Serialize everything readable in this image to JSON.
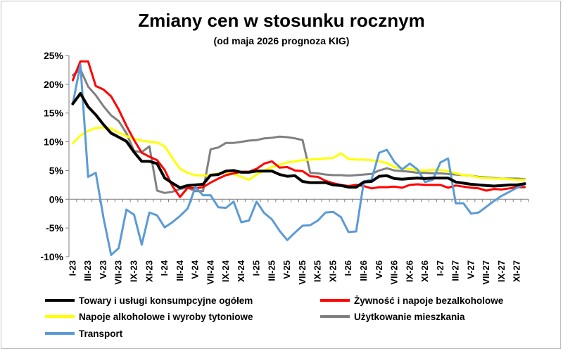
{
  "chart_data": {
    "type": "line",
    "title": "Zmiany cen w stosunku rocznym",
    "subtitle": "(od maja 2026 prognoza KIG)",
    "ylim": [
      -10,
      25
    ],
    "yticks": [
      "-10%",
      "-5%",
      "0%",
      "5%",
      "10%",
      "15%",
      "20%",
      "25%"
    ],
    "grid": false,
    "legend_position": "bottom",
    "x": [
      "I-23",
      "II-23",
      "III-23",
      "IV-23",
      "V-23",
      "VI-23",
      "VII-23",
      "VIII-23",
      "IX-23",
      "X-23",
      "XI-23",
      "XII-23",
      "I-24",
      "II-24",
      "III-24",
      "IV-24",
      "V-24",
      "VI-24",
      "VII-24",
      "VIII-24",
      "IX-24",
      "X-24",
      "XI-24",
      "XII-24",
      "I-25",
      "II-25",
      "III-25",
      "IV-25",
      "V-25",
      "VI-25",
      "VII-25",
      "VIII-25",
      "IX-25",
      "X-25",
      "XI-25",
      "XII-25",
      "I-26",
      "II-26",
      "III-26",
      "IV-26",
      "V-26",
      "VI-26",
      "VII-26",
      "VIII-26",
      "IX-26",
      "X-26",
      "XI-26",
      "XII-26",
      "I-27",
      "II-27",
      "III-27",
      "IV-27",
      "V-27",
      "VI-27",
      "VII-27",
      "VIII-27",
      "IX-27",
      "X-27",
      "XI-27",
      "XII-27"
    ],
    "x_tick_labels": [
      "I-23",
      "III-23",
      "V-23",
      "VII-23",
      "IX-23",
      "XI-23",
      "I-24",
      "III-24",
      "V-24",
      "VII-24",
      "IX-24",
      "XI-24",
      "I-25",
      "III-25",
      "V-25",
      "VII-25",
      "IX-25",
      "XI-25",
      "I-26",
      "III-26",
      "V-26",
      "VII-26",
      "IX-26",
      "XI-26",
      "I-27",
      "III-27",
      "V-27",
      "VII-27",
      "IX-27",
      "XI-27"
    ],
    "series": [
      {
        "name": "Towary i usługi konsumpcyjne ogółem",
        "color": "#000000",
        "width": 4,
        "values": [
          16.6,
          18.4,
          16.1,
          14.7,
          13.0,
          11.5,
          10.8,
          10.1,
          8.2,
          6.6,
          6.6,
          6.2,
          3.7,
          2.8,
          2.0,
          2.4,
          2.5,
          2.6,
          4.2,
          4.3,
          4.9,
          5.0,
          4.7,
          4.7,
          4.9,
          4.9,
          4.9,
          4.3,
          4.0,
          4.1,
          3.1,
          2.9,
          2.9,
          2.9,
          2.5,
          2.4,
          2.1,
          2.1,
          3.0,
          3.1,
          4.0,
          4.1,
          3.6,
          3.5,
          3.6,
          3.7,
          3.6,
          3.7,
          3.7,
          3.7,
          3.0,
          2.8,
          2.6,
          2.5,
          2.4,
          2.3,
          2.4,
          2.5,
          2.5,
          2.7
        ]
      },
      {
        "name": "Żywność i napoje bezalkoholowe",
        "color": "#ff0000",
        "width": 3,
        "values": [
          20.7,
          24.0,
          24.0,
          19.7,
          19.1,
          17.9,
          15.6,
          12.8,
          10.3,
          8.1,
          7.4,
          6.8,
          5.1,
          2.3,
          0.4,
          2.0,
          1.9,
          2.1,
          2.9,
          3.6,
          4.2,
          4.5,
          4.8,
          4.8,
          5.3,
          6.2,
          6.6,
          5.5,
          5.6,
          5.0,
          4.9,
          4.0,
          3.9,
          3.2,
          2.8,
          2.5,
          2.3,
          2.5,
          2.3,
          1.9,
          2.1,
          2.1,
          2.2,
          2.0,
          2.5,
          2.6,
          2.5,
          2.5,
          2.5,
          2.0,
          2.4,
          2.2,
          2.0,
          1.9,
          1.5,
          1.8,
          1.7,
          1.9,
          2.1,
          2.1
        ]
      },
      {
        "name": "Napoje alkoholowe i wyroby tytoniowe",
        "color": "#ffff00",
        "width": 3,
        "values": [
          9.7,
          11.1,
          11.9,
          12.4,
          12.5,
          12.3,
          11.6,
          11.0,
          10.5,
          10.2,
          10.0,
          9.9,
          9.2,
          7.2,
          5.3,
          4.6,
          4.2,
          4.1,
          4.2,
          4.5,
          4.7,
          4.4,
          3.9,
          3.4,
          4.3,
          5.0,
          5.6,
          6.0,
          6.4,
          6.6,
          6.8,
          6.9,
          7.0,
          7.1,
          7.2,
          8.0,
          7.0,
          6.9,
          6.9,
          6.8,
          6.6,
          6.3,
          5.6,
          5.4,
          5.3,
          5.0,
          5.0,
          5.1,
          5.1,
          4.9,
          4.5,
          4.2,
          4.1,
          3.8,
          3.7,
          3.6,
          3.6,
          3.5,
          3.4,
          3.4
        ]
      },
      {
        "name": "Użytkowanie mieszkania",
        "color": "#808080",
        "width": 3,
        "values": [
          21.6,
          22.6,
          19.6,
          18.1,
          16.2,
          14.6,
          13.6,
          11.5,
          8.4,
          8.2,
          9.2,
          1.5,
          1.1,
          1.3,
          1.8,
          2.0,
          1.4,
          1.4,
          8.7,
          9.0,
          9.8,
          9.8,
          10.0,
          10.2,
          10.3,
          10.6,
          10.7,
          10.9,
          10.8,
          10.6,
          10.3,
          4.6,
          4.5,
          4.3,
          4.2,
          4.2,
          4.1,
          4.2,
          4.3,
          4.4,
          5.0,
          5.4,
          5.0,
          4.9,
          4.8,
          4.6,
          4.6,
          4.5,
          4.5,
          4.4,
          4.3,
          4.2,
          4.1,
          3.9,
          3.8,
          3.7,
          3.6,
          3.6,
          3.6,
          3.5
        ]
      },
      {
        "name": "Transport",
        "color": "#5b9bd5",
        "width": 3,
        "values": [
          16.6,
          23.4,
          3.9,
          4.6,
          -3.2,
          -9.7,
          -8.5,
          -1.8,
          -2.7,
          -7.9,
          -2.3,
          -2.8,
          -4.9,
          -4.0,
          -2.9,
          -1.6,
          2.1,
          0.7,
          0.7,
          -1.4,
          -1.5,
          -0.4,
          -4.0,
          -3.7,
          -0.4,
          -2.4,
          -3.5,
          -5.5,
          -7.1,
          -5.8,
          -4.6,
          -4.5,
          -3.7,
          -2.3,
          -2.2,
          -3.1,
          -5.7,
          -5.6,
          3.1,
          3.4,
          8.1,
          8.6,
          6.5,
          5.2,
          6.2,
          5.2,
          3.0,
          3.4,
          6.4,
          7.1,
          -0.7,
          -0.7,
          -2.5,
          -2.3,
          -1.3,
          -0.3,
          0.6,
          1.3,
          2.0,
          2.6
        ]
      }
    ]
  }
}
